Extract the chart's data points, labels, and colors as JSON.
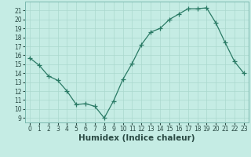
{
  "x": [
    0,
    1,
    2,
    3,
    4,
    5,
    6,
    7,
    8,
    9,
    10,
    11,
    12,
    13,
    14,
    15,
    16,
    17,
    18,
    19,
    20,
    21,
    22,
    23
  ],
  "y": [
    15.7,
    14.9,
    13.7,
    13.2,
    12.0,
    10.5,
    10.6,
    10.3,
    9.0,
    10.9,
    13.3,
    15.1,
    17.2,
    18.6,
    19.0,
    20.0,
    20.6,
    21.2,
    21.2,
    21.3,
    19.6,
    17.4,
    15.3,
    14.0
  ],
  "xlim": [
    -0.5,
    23.5
  ],
  "ylim": [
    8.5,
    22.0
  ],
  "xticks": [
    0,
    1,
    2,
    3,
    4,
    5,
    6,
    7,
    8,
    9,
    10,
    11,
    12,
    13,
    14,
    15,
    16,
    17,
    18,
    19,
    20,
    21,
    22,
    23
  ],
  "yticks": [
    9,
    10,
    11,
    12,
    13,
    14,
    15,
    16,
    17,
    18,
    19,
    20,
    21
  ],
  "xlabel": "Humidex (Indice chaleur)",
  "bg_color": "#c5ece4",
  "line_color": "#2a7a65",
  "grid_color": "#aad8ce",
  "tick_fontsize": 5.5,
  "xlabel_fontsize": 7.5
}
